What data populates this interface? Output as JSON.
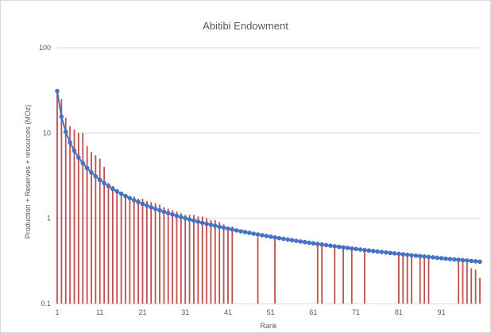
{
  "chart_data": {
    "type": "bar",
    "title": "Abitibi Endowment",
    "xlabel": "Rank",
    "ylabel": "Production + Reserves + resources (MOz)",
    "yscale": "log",
    "ylim": [
      0.1,
      100
    ],
    "xlim": [
      1,
      100
    ],
    "y_ticks": [
      "0.1",
      "1",
      "10",
      "100"
    ],
    "x_ticks": [
      "1",
      "11",
      "21",
      "31",
      "41",
      "51",
      "61",
      "71",
      "81",
      "91"
    ],
    "grid": true,
    "bars": {
      "color": "#c0504d",
      "x": [
        1,
        2,
        3,
        4,
        5,
        6,
        7,
        8,
        9,
        10,
        11,
        12,
        13,
        14,
        15,
        16,
        17,
        18,
        19,
        20,
        21,
        22,
        23,
        24,
        25,
        26,
        27,
        28,
        29,
        30,
        31,
        32,
        33,
        34,
        35,
        36,
        37,
        38,
        39,
        40,
        41,
        42,
        48,
        52,
        62,
        63,
        66,
        68,
        70,
        73,
        81,
        82,
        83,
        84,
        86,
        87,
        88,
        95,
        96,
        97,
        98,
        99,
        100
      ],
      "values": [
        31,
        25,
        15,
        12,
        11,
        10,
        10,
        7,
        6,
        5.5,
        5,
        4,
        2.6,
        2.4,
        2.2,
        2.0,
        1.9,
        1.8,
        1.8,
        1.7,
        1.7,
        1.6,
        1.55,
        1.5,
        1.45,
        1.35,
        1.3,
        1.25,
        1.2,
        1.15,
        1.1,
        1.1,
        1.1,
        1.05,
        1.05,
        1.0,
        0.95,
        0.95,
        0.9,
        0.85,
        0.8,
        0.8,
        0.6,
        0.6,
        0.5,
        0.48,
        0.46,
        0.45,
        0.45,
        0.4,
        0.4,
        0.39,
        0.38,
        0.37,
        0.36,
        0.36,
        0.35,
        0.32,
        0.32,
        0.3,
        0.26,
        0.25,
        0.2
      ]
    },
    "curve": {
      "color": "#4472c4",
      "x_start": 1,
      "x_end": 100,
      "y_start": 31,
      "y_end": 0.31,
      "exponent": 1.0
    }
  }
}
